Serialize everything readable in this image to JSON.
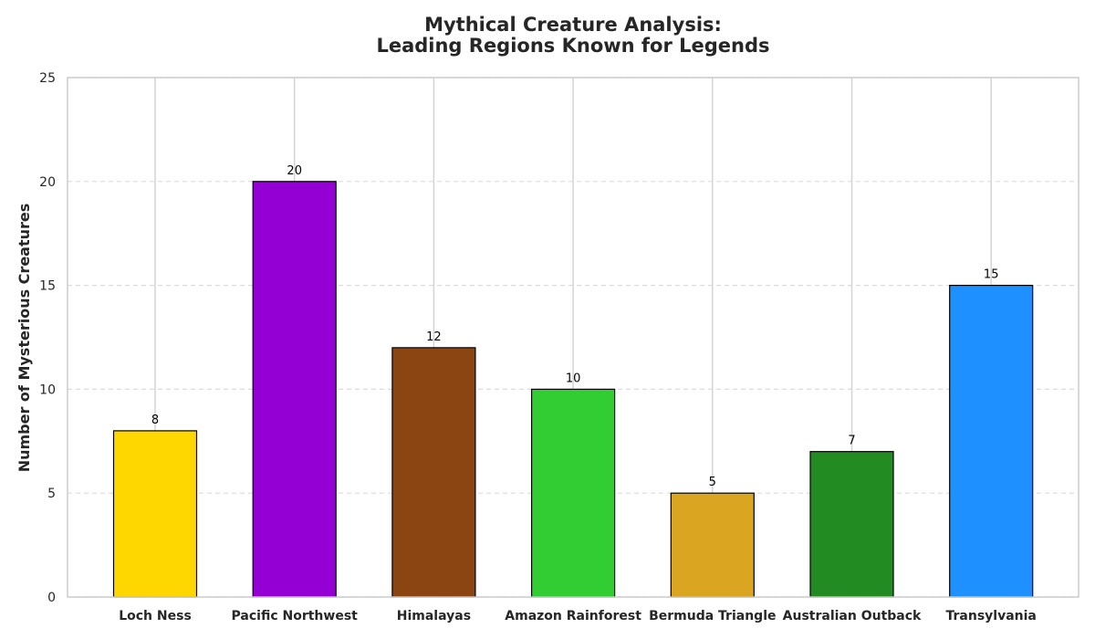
{
  "chart_data": {
    "type": "bar",
    "title_lines": [
      "Mythical Creature Analysis:",
      "Leading Regions Known for Legends"
    ],
    "xlabel": "",
    "ylabel": "Number of Mysterious Creatures",
    "categories": [
      "Loch Ness",
      "Pacific Northwest",
      "Himalayas",
      "Amazon Rainforest",
      "Bermuda Triangle",
      "Australian Outback",
      "Transylvania"
    ],
    "values": [
      8,
      20,
      12,
      10,
      5,
      7,
      15
    ],
    "colors": [
      "#FFD700",
      "#9400D3",
      "#8B4513",
      "#32CD32",
      "#DAA520",
      "#228B22",
      "#1E90FF"
    ],
    "ylim": [
      0,
      25
    ],
    "yticks": [
      0,
      5,
      10,
      15,
      20,
      25
    ],
    "grid": true,
    "data_labels": true
  }
}
